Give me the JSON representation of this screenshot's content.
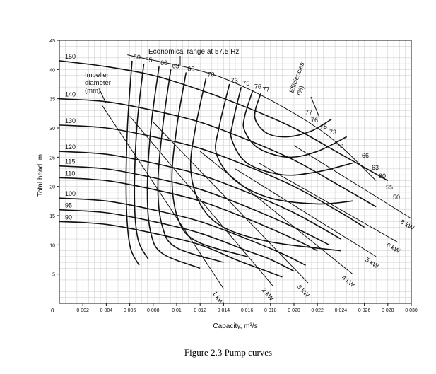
{
  "caption": "Figure 2.3  Pump curves",
  "chart_data": {
    "type": "line",
    "title": "",
    "xlabel": "Capacity,    m³/s",
    "ylabel": "Total head,   m",
    "xlim": [
      0,
      0.03
    ],
    "ylim": [
      0,
      45
    ],
    "x_ticks": [
      "0 002",
      "0 004",
      "0 006",
      "0 008",
      "0 01",
      "0 012",
      "0 014",
      "0 016",
      "0 018",
      "0 020",
      "0 022",
      "0 024",
      "0 026",
      "0 028",
      "0 030"
    ],
    "y_ticks": [
      "5",
      "10",
      "15",
      "20",
      "25",
      "30",
      "35",
      "40",
      "45"
    ],
    "origin_label": "0",
    "annotations": {
      "impeller": "Impeller\ndiameter\n(mm)",
      "economical": "Economical range at 57.5 Hz",
      "efficiencies": "Efficiencies\n(%)"
    },
    "series": [
      {
        "name": "150",
        "x": [
          0,
          0.004,
          0.008,
          0.012,
          0.016,
          0.02,
          0.024,
          0.028
        ],
        "y": [
          41.5,
          40.5,
          39,
          36.5,
          33.5,
          30,
          25.5,
          21
        ]
      },
      {
        "name": "140",
        "x": [
          0,
          0.004,
          0.008,
          0.012,
          0.016,
          0.02,
          0.024,
          0.027
        ],
        "y": [
          35,
          34.5,
          33,
          31,
          28,
          24.5,
          20,
          16.5
        ]
      },
      {
        "name": "130",
        "x": [
          0,
          0.004,
          0.008,
          0.012,
          0.016,
          0.02,
          0.024,
          0.026
        ],
        "y": [
          30.5,
          30,
          28.5,
          26.5,
          23.5,
          20,
          15.5,
          13
        ]
      },
      {
        "name": "120",
        "x": [
          0,
          0.004,
          0.008,
          0.012,
          0.016,
          0.02,
          0.024
        ],
        "y": [
          26,
          25.5,
          24,
          22,
          19,
          15.5,
          11
        ]
      },
      {
        "name": "115",
        "x": [
          0,
          0.004,
          0.008,
          0.012,
          0.016,
          0.02,
          0.023
        ],
        "y": [
          23.5,
          23,
          21.5,
          19.5,
          16.5,
          13,
          10
        ]
      },
      {
        "name": "110",
        "x": [
          0,
          0.004,
          0.008,
          0.012,
          0.016,
          0.02,
          0.022
        ],
        "y": [
          21.5,
          21,
          19.5,
          17.5,
          14.5,
          11,
          9
        ]
      },
      {
        "name": "100",
        "x": [
          0,
          0.004,
          0.008,
          0.012,
          0.016,
          0.019,
          0.021
        ],
        "y": [
          18,
          17.5,
          16,
          14,
          11,
          8.5,
          6.5
        ]
      },
      {
        "name": "95",
        "x": [
          0,
          0.004,
          0.008,
          0.012,
          0.016,
          0.018,
          0.02
        ],
        "y": [
          16,
          15.5,
          14,
          12,
          9,
          7.5,
          5.5
        ]
      },
      {
        "name": "90",
        "x": [
          0,
          0.004,
          0.008,
          0.012,
          0.015,
          0.017,
          0.019
        ],
        "y": [
          14,
          13.5,
          12,
          10,
          7.5,
          6,
          4.5
        ]
      }
    ],
    "efficiency_curves": [
      {
        "label": "50",
        "x": [
          0.0062,
          0.0058,
          0.0057,
          0.006,
          0.0068
        ],
        "y": [
          41.5,
          30,
          18,
          10,
          6.5
        ]
      },
      {
        "label": "55",
        "x": [
          0.0072,
          0.0066,
          0.0064,
          0.0067,
          0.0076
        ],
        "y": [
          41,
          30,
          18,
          11,
          7.5
        ]
      },
      {
        "label": "60",
        "x": [
          0.0085,
          0.0078,
          0.0075,
          0.0078,
          0.0088,
          0.012
        ],
        "y": [
          40.5,
          30,
          19,
          12,
          8.5,
          6
        ]
      },
      {
        "label": "63",
        "x": [
          0.0095,
          0.0088,
          0.0084,
          0.0088,
          0.01,
          0.014
        ],
        "y": [
          40,
          30,
          20,
          13,
          9.5,
          7
        ]
      },
      {
        "label": "66",
        "x": [
          0.0108,
          0.01,
          0.0096,
          0.0102,
          0.0118,
          0.016
        ],
        "y": [
          39.5,
          30,
          21,
          14,
          10.5,
          8
        ]
      },
      {
        "label": "70",
        "x": [
          0.0125,
          0.0116,
          0.0112,
          0.012,
          0.014,
          0.018,
          0.024
        ],
        "y": [
          38.5,
          30,
          23,
          17,
          13,
          10.5,
          9
        ]
      },
      {
        "label": "73",
        "x": [
          0.0145,
          0.0136,
          0.0134,
          0.015,
          0.018,
          0.022,
          0.025
        ],
        "y": [
          37.5,
          30,
          25.5,
          21,
          18,
          17,
          17.5
        ]
      },
      {
        "label": "75",
        "x": [
          0.0155,
          0.0148,
          0.0147,
          0.016,
          0.019,
          0.022,
          0.025
        ],
        "y": [
          37,
          31,
          28,
          24,
          22,
          22.5,
          24
        ]
      },
      {
        "label": "76",
        "x": [
          0.0165,
          0.0158,
          0.0158,
          0.017,
          0.0195,
          0.022,
          0.0245
        ],
        "y": [
          36.5,
          32,
          29.5,
          26.5,
          25,
          26,
          28.5
        ]
      },
      {
        "label": "77",
        "x": [
          0.0172,
          0.0167,
          0.0168,
          0.0178,
          0.0195,
          0.0215,
          0.0232
        ],
        "y": [
          36,
          33,
          31,
          29,
          28.5,
          29.5,
          31.5
        ]
      }
    ],
    "efficiency_end_labels": [
      "77",
      "76",
      "75",
      "73",
      "70",
      "66",
      "63",
      "60",
      "55",
      "50"
    ],
    "power_lines": [
      {
        "label": "1 kW",
        "x": [
          0.0036,
          0.014
        ],
        "y": [
          34,
          2.5
        ]
      },
      {
        "label": "2 kW",
        "x": [
          0.006,
          0.0182
        ],
        "y": [
          32,
          3
        ]
      },
      {
        "label": "3 kW",
        "x": [
          0.008,
          0.0212
        ],
        "y": [
          31,
          3.5
        ]
      },
      {
        "label": "4 kW",
        "x": [
          0.012,
          0.025
        ],
        "y": [
          26,
          5
        ]
      },
      {
        "label": "5 kW",
        "x": [
          0.015,
          0.027
        ],
        "y": [
          23,
          8
        ]
      },
      {
        "label": "6 kW",
        "x": [
          0.017,
          0.0288
        ],
        "y": [
          24,
          10.5
        ]
      },
      {
        "label": "8 kW",
        "x": [
          0.02,
          0.03
        ],
        "y": [
          27,
          14.5
        ]
      }
    ],
    "economical_boundary": {
      "x": [
        0.0058,
        0.014,
        0.022,
        0.027
      ],
      "y": [
        42.5,
        38.5,
        30,
        21
      ]
    },
    "grid": true,
    "legend": "none"
  }
}
